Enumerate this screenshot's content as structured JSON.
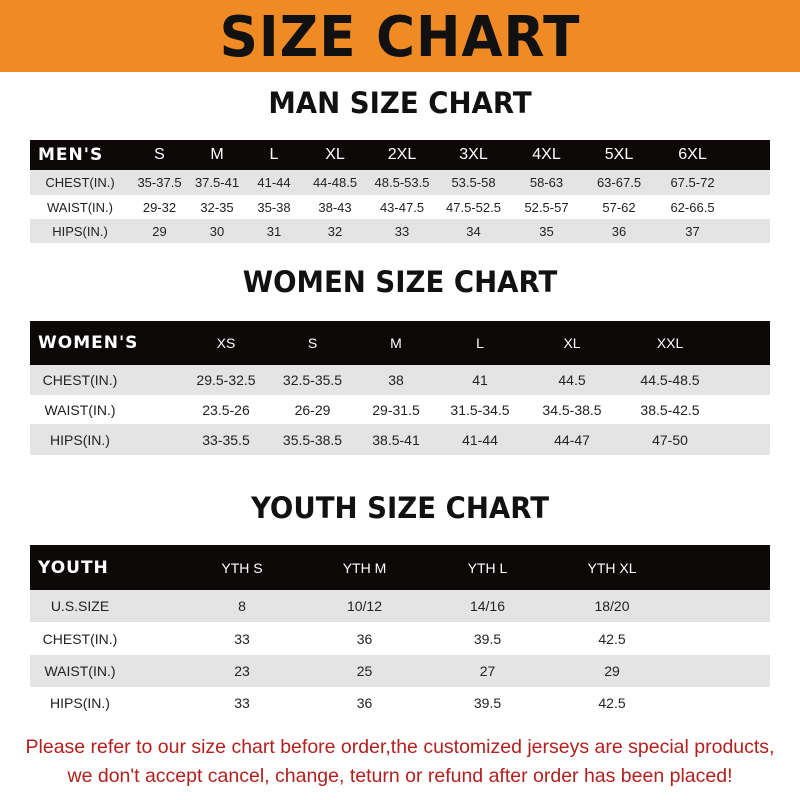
{
  "title": "SIZE CHART",
  "colors": {
    "banner": "#ef8a25",
    "header_row": "#0c0808",
    "stripe": "#e4e4e4",
    "note": "#b3201e"
  },
  "men": {
    "title": "MAN SIZE CHART",
    "header": "MEN'S",
    "sizes": [
      "S",
      "M",
      "L",
      "XL",
      "2XL",
      "3XL",
      "4XL",
      "5XL",
      "6XL"
    ],
    "rows": [
      {
        "label": "CHEST(IN.)",
        "values": [
          "35-37.5",
          "37.5-41",
          "41-44",
          "44-48.5",
          "48.5-53.5",
          "53.5-58",
          "58-63",
          "63-67.5",
          "67.5-72"
        ]
      },
      {
        "label": "WAIST(IN.)",
        "values": [
          "29-32",
          "32-35",
          "35-38",
          "38-43",
          "43-47.5",
          "47.5-52.5",
          "52.5-57",
          "57-62",
          "62-66.5"
        ]
      },
      {
        "label": "HIPS(IN.)",
        "values": [
          "29",
          "30",
          "31",
          "32",
          "33",
          "34",
          "35",
          "36",
          "37"
        ]
      }
    ]
  },
  "women": {
    "title": "WOMEN SIZE CHART",
    "header": "WOMEN'S",
    "sizes": [
      "XS",
      "S",
      "M",
      "L",
      "XL",
      "XXL"
    ],
    "rows": [
      {
        "label": "CHEST(IN.)",
        "values": [
          "29.5-32.5",
          "32.5-35.5",
          "38",
          "41",
          "44.5",
          "44.5-48.5"
        ]
      },
      {
        "label": "WAIST(IN.)",
        "values": [
          "23.5-26",
          "26-29",
          "29-31.5",
          "31.5-34.5",
          "34.5-38.5",
          "38.5-42.5"
        ]
      },
      {
        "label": "HIPS(IN.)",
        "values": [
          "33-35.5",
          "35.5-38.5",
          "38.5-41",
          "41-44",
          "44-47",
          "47-50"
        ]
      }
    ]
  },
  "youth": {
    "title": "YOUTH SIZE CHART",
    "header": "YOUTH",
    "sizes": [
      "YTH S",
      "YTH M",
      "YTH L",
      "YTH XL"
    ],
    "rows": [
      {
        "label": "U.S.SIZE",
        "values": [
          "8",
          "10/12",
          "14/16",
          "18/20"
        ]
      },
      {
        "label": "CHEST(IN.)",
        "values": [
          "33",
          "36",
          "39.5",
          "42.5"
        ]
      },
      {
        "label": "WAIST(IN.)",
        "values": [
          "23",
          "25",
          "27",
          "29"
        ]
      },
      {
        "label": "HIPS(IN.)",
        "values": [
          "33",
          "36",
          "39.5",
          "42.5"
        ]
      }
    ]
  },
  "note": [
    "Please refer to our size chart before order,the customized jerseys are special products,",
    "we don't accept cancel, change, teturn or refund after order has been placed!"
  ]
}
